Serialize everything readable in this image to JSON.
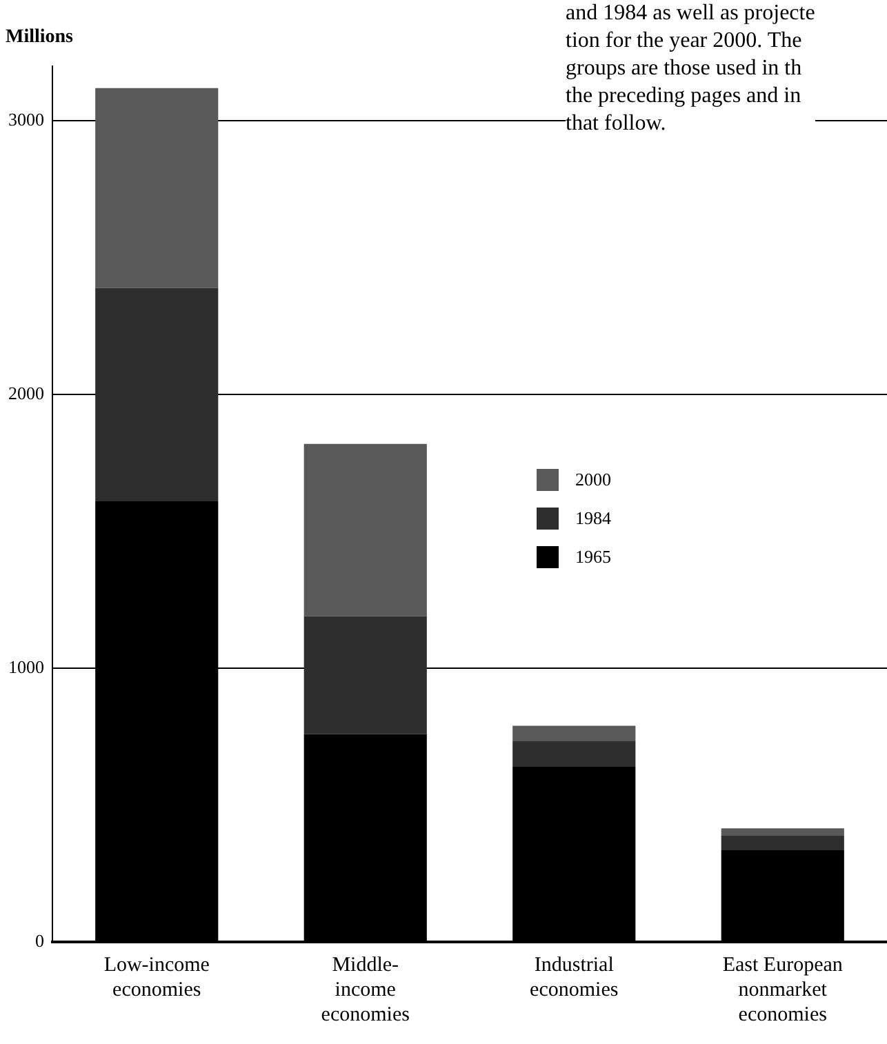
{
  "chart_data": {
    "type": "bar",
    "stacked": true,
    "categories": [
      "Low-income\neconomies",
      "Middle-\nincome\neconomies",
      "Industrial\neconomies",
      "East European\nnonmarket\neconomies"
    ],
    "series": [
      {
        "name": "1965",
        "color": "#000000",
        "values": [
          1610,
          760,
          640,
          335
        ]
      },
      {
        "name": "1984",
        "color": "#2e2e2e",
        "values": [
          780,
          430,
          95,
          55
        ]
      },
      {
        "name": "2000",
        "color": "#595959",
        "values": [
          730,
          630,
          55,
          25
        ]
      }
    ],
    "ylabel": "Millions",
    "ylim": [
      0,
      3200
    ],
    "yticks": [
      0,
      1000,
      2000,
      3000
    ],
    "grid": "y",
    "legend": "right",
    "annotations": [
      "and 1984 as well as projecte",
      "tion for the year 2000. The",
      "groups are those used in th",
      "the preceding pages and in",
      "that follow."
    ]
  }
}
